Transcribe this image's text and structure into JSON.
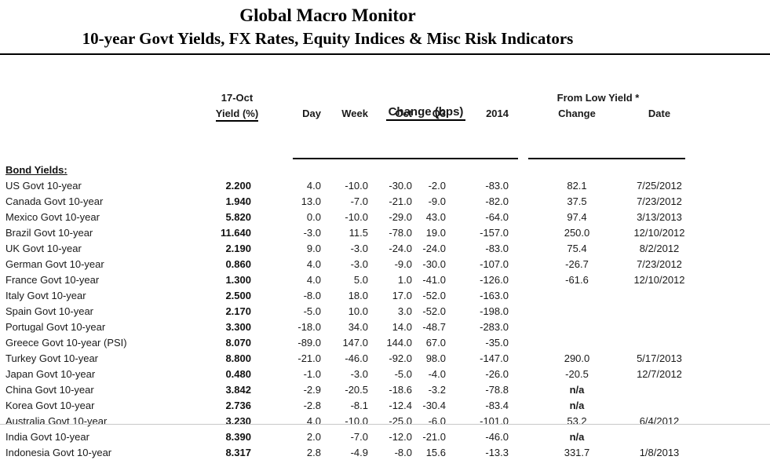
{
  "header": {
    "title": "Global Macro Monitor",
    "subtitle": "10-year Govt Yields, FX Rates, Equity Indices & Misc Risk Indicators"
  },
  "table": {
    "change_group_label": "Change (bps)",
    "yield_date_label": "17-Oct",
    "yield_label": "Yield (%)",
    "columns": {
      "day": "Day",
      "week": "Week",
      "oct": "Oct",
      "q3": "Q3",
      "y2014": "2014"
    },
    "from_low_group_label": "From Low Yield *",
    "from_low_columns": {
      "change": "Change",
      "date": "Date"
    },
    "section_label": "Bond Yields:",
    "rows": [
      {
        "label": "US Govt 10-year",
        "yield": "2.200",
        "day": "4.0",
        "week": "-10.0",
        "oct": "-30.0",
        "q3": "-2.0",
        "y2014": "-83.0",
        "low_change": "82.1",
        "low_date": "7/25/2012"
      },
      {
        "label": "Canada Govt 10-year",
        "yield": "1.940",
        "day": "13.0",
        "week": "-7.0",
        "oct": "-21.0",
        "q3": "-9.0",
        "y2014": "-82.0",
        "low_change": "37.5",
        "low_date": "7/23/2012"
      },
      {
        "label": "Mexico Govt 10-year",
        "yield": "5.820",
        "day": "0.0",
        "week": "-10.0",
        "oct": "-29.0",
        "q3": "43.0",
        "y2014": "-64.0",
        "low_change": "97.4",
        "low_date": "3/13/2013"
      },
      {
        "label": "Brazil Govt 10-year",
        "yield": "11.640",
        "day": "-3.0",
        "week": "11.5",
        "oct": "-78.0",
        "q3": "19.0",
        "y2014": "-157.0",
        "low_change": "250.0",
        "low_date": "12/10/2012"
      },
      {
        "label": "UK Govt 10-year",
        "yield": "2.190",
        "day": "9.0",
        "week": "-3.0",
        "oct": "-24.0",
        "q3": "-24.0",
        "y2014": "-83.0",
        "low_change": "75.4",
        "low_date": "8/2/2012"
      },
      {
        "label": "German Govt 10-year",
        "yield": "0.860",
        "day": "4.0",
        "week": "-3.0",
        "oct": "-9.0",
        "q3": "-30.0",
        "y2014": "-107.0",
        "low_change": "-26.7",
        "low_date": "7/23/2012"
      },
      {
        "label": "France Govt 10-year",
        "yield": "1.300",
        "day": "4.0",
        "week": "5.0",
        "oct": "1.0",
        "q3": "-41.0",
        "y2014": "-126.0",
        "low_change": "-61.6",
        "low_date": "12/10/2012"
      },
      {
        "label": "Italy Govt 10-year",
        "yield": "2.500",
        "day": "-8.0",
        "week": "18.0",
        "oct": "17.0",
        "q3": "-52.0",
        "y2014": "-163.0",
        "low_change": "",
        "low_date": ""
      },
      {
        "label": "Spain Govt 10-year",
        "yield": "2.170",
        "day": "-5.0",
        "week": "10.0",
        "oct": "3.0",
        "q3": "-52.0",
        "y2014": "-198.0",
        "low_change": "",
        "low_date": ""
      },
      {
        "label": "Portugal Govt 10-year",
        "yield": "3.300",
        "day": "-18.0",
        "week": "34.0",
        "oct": "14.0",
        "q3": "-48.7",
        "y2014": "-283.0",
        "low_change": "",
        "low_date": ""
      },
      {
        "label": "Greece Govt 10-year (PSI)",
        "yield": "8.070",
        "day": "-89.0",
        "week": "147.0",
        "oct": "144.0",
        "q3": "67.0",
        "y2014": "-35.0",
        "low_change": "",
        "low_date": ""
      },
      {
        "label": "Turkey Govt 10-year",
        "yield": "8.800",
        "day": "-21.0",
        "week": "-46.0",
        "oct": "-92.0",
        "q3": "98.0",
        "y2014": "-147.0",
        "low_change": "290.0",
        "low_date": "5/17/2013"
      },
      {
        "label": "Japan Govt 10-year",
        "yield": "0.480",
        "day": "-1.0",
        "week": "-3.0",
        "oct": "-5.0",
        "q3": "-4.0",
        "y2014": "-26.0",
        "low_change": "-20.5",
        "low_date": "12/7/2012"
      },
      {
        "label": "China Govt 10-year",
        "yield": "3.842",
        "day": "-2.9",
        "week": "-20.5",
        "oct": "-18.6",
        "q3": "-3.2",
        "y2014": "-78.8",
        "low_change": "n/a",
        "low_date": ""
      },
      {
        "label": "Korea Govt 10-year",
        "yield": "2.736",
        "day": "-2.8",
        "week": "-8.1",
        "oct": "-12.4",
        "q3": "-30.4",
        "y2014": "-83.4",
        "low_change": "n/a",
        "low_date": ""
      },
      {
        "label": "Australia Govt 10-year",
        "yield": "3.230",
        "day": "4.0",
        "week": "-10.0",
        "oct": "-25.0",
        "q3": "-6.0",
        "y2014": "-101.0",
        "low_change": "53.2",
        "low_date": "6/4/2012"
      },
      {
        "label": "India Govt 10-year",
        "yield": "8.390",
        "day": "2.0",
        "week": "-7.0",
        "oct": "-12.0",
        "q3": "-21.0",
        "y2014": "-46.0",
        "low_change": "n/a",
        "low_date": ""
      },
      {
        "label": "Indonesia Govt 10-year",
        "yield": "8.317",
        "day": "2.8",
        "week": "-4.9",
        "oct": "-8.0",
        "q3": "15.6",
        "y2014": "-13.3",
        "low_change": "331.7",
        "low_date": "1/8/2013"
      }
    ]
  },
  "colors": {
    "text": "#1a1a1a",
    "rule": "#000000",
    "background": "#ffffff"
  }
}
